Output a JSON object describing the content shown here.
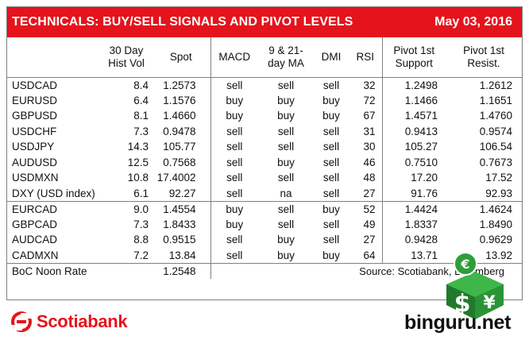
{
  "header": {
    "title": "TECHNICALS: BUY/SELL SIGNALS AND PIVOT LEVELS",
    "date": "May 03, 2016"
  },
  "columns": {
    "vol": [
      "30 Day",
      "Hist Vol"
    ],
    "spot": "Spot",
    "macd": "MACD",
    "ma": [
      "9 & 21-",
      "day MA"
    ],
    "dmi": "DMI",
    "rsi": "RSI",
    "support": [
      "Pivot 1st",
      "Support"
    ],
    "resist": [
      "Pivot 1st",
      "Resist."
    ]
  },
  "rows": [
    {
      "sym": "USDCAD",
      "vol": "8.4",
      "spot": "1.2573",
      "macd": "sell",
      "ma": "sell",
      "dmi": "sell",
      "rsi": "32",
      "support": "1.2498",
      "resist": "1.2612"
    },
    {
      "sym": "EURUSD",
      "vol": "6.4",
      "spot": "1.1576",
      "macd": "buy",
      "ma": "buy",
      "dmi": "buy",
      "rsi": "72",
      "support": "1.1466",
      "resist": "1.1651"
    },
    {
      "sym": "GBPUSD",
      "vol": "8.1",
      "spot": "1.4660",
      "macd": "buy",
      "ma": "buy",
      "dmi": "buy",
      "rsi": "67",
      "support": "1.4571",
      "resist": "1.4760"
    },
    {
      "sym": "USDCHF",
      "vol": "7.3",
      "spot": "0.9478",
      "macd": "sell",
      "ma": "sell",
      "dmi": "sell",
      "rsi": "31",
      "support": "0.9413",
      "resist": "0.9574"
    },
    {
      "sym": "USDJPY",
      "vol": "14.3",
      "spot": "105.77",
      "macd": "sell",
      "ma": "sell",
      "dmi": "sell",
      "rsi": "30",
      "support": "105.27",
      "resist": "106.54"
    },
    {
      "sym": "AUDUSD",
      "vol": "12.5",
      "spot": "0.7568",
      "macd": "sell",
      "ma": "buy",
      "dmi": "sell",
      "rsi": "46",
      "support": "0.7510",
      "resist": "0.7673"
    },
    {
      "sym": "USDMXN",
      "vol": "10.8",
      "spot": "17.4002",
      "macd": "sell",
      "ma": "sell",
      "dmi": "sell",
      "rsi": "48",
      "support": "17.20",
      "resist": "17.52"
    },
    {
      "sym": "DXY (USD index)",
      "vol": "6.1",
      "spot": "92.27",
      "macd": "sell",
      "ma": "na",
      "dmi": "sell",
      "rsi": "27",
      "support": "91.76",
      "resist": "92.93"
    },
    {
      "sym": "EURCAD",
      "vol": "9.0",
      "spot": "1.4554",
      "macd": "buy",
      "ma": "sell",
      "dmi": "buy",
      "rsi": "52",
      "support": "1.4424",
      "resist": "1.4624"
    },
    {
      "sym": "GBPCAD",
      "vol": "7.3",
      "spot": "1.8433",
      "macd": "buy",
      "ma": "sell",
      "dmi": "sell",
      "rsi": "49",
      "support": "1.8337",
      "resist": "1.8490"
    },
    {
      "sym": "AUDCAD",
      "vol": "8.8",
      "spot": "0.9515",
      "macd": "sell",
      "ma": "buy",
      "dmi": "sell",
      "rsi": "27",
      "support": "0.9428",
      "resist": "0.9629"
    },
    {
      "sym": "CADMXN",
      "vol": "7.2",
      "spot": "13.84",
      "macd": "sell",
      "ma": "buy",
      "dmi": "buy",
      "rsi": "64",
      "support": "13.71",
      "resist": "13.92"
    }
  ],
  "footer": {
    "label": "BoC Noon Rate",
    "value": "1.2548",
    "source": "Source: Scotiabank, Bloomberg"
  },
  "branding": {
    "logo": "Scotiabank",
    "site": "binguru.net",
    "currency_glyphs": [
      "€",
      "$",
      "¥"
    ]
  },
  "colors": {
    "header_bg": "#e5131c",
    "logo_red": "#e5131c",
    "icon_green": "#2e9e3a"
  }
}
